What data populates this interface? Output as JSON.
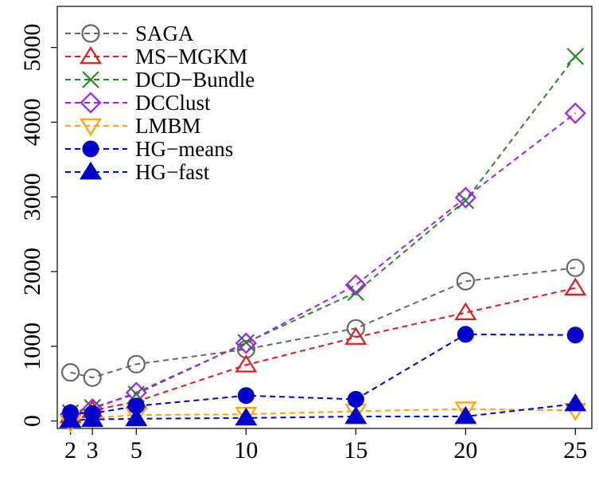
{
  "chart_data": {
    "type": "line",
    "x": [
      2,
      3,
      5,
      10,
      15,
      20,
      25
    ],
    "xticks": [
      "2",
      "3",
      "5",
      "10",
      "15",
      "20",
      "25"
    ],
    "yticks": [
      "0",
      "1000",
      "2000",
      "3000",
      "4000",
      "5000"
    ],
    "xlim": [
      1.4,
      25.75
    ],
    "ylim": [
      -100,
      5550
    ],
    "grid": false,
    "legend_position": "top-left",
    "series": [
      {
        "name": "SAGA",
        "color": "#666666",
        "marker": "circle-open",
        "values": [
          650,
          580,
          760,
          960,
          1240,
          1870,
          2050
        ]
      },
      {
        "name": "MS−MGKM",
        "color": "#e41a1c",
        "marker": "triangle-open",
        "values": [
          70,
          140,
          260,
          750,
          1120,
          1450,
          1780
        ]
      },
      {
        "name": "DCD−Bundle",
        "color": "#228b22",
        "marker": "x",
        "values": [
          110,
          180,
          360,
          1050,
          1720,
          2950,
          4880
        ]
      },
      {
        "name": "DCClust",
        "color": "#a020f0",
        "marker": "diamond-open",
        "values": [
          90,
          160,
          380,
          1040,
          1820,
          2990,
          4120
        ]
      },
      {
        "name": "LMBM",
        "color": "#ffa500",
        "marker": "triangle-down-open",
        "values": [
          -20,
          40,
          80,
          90,
          130,
          160,
          140
        ]
      },
      {
        "name": "HG−means",
        "color": "#0000cd",
        "marker": "circle-filled",
        "values": [
          110,
          100,
          200,
          340,
          290,
          1160,
          1150
        ]
      },
      {
        "name": "HG−fast",
        "color": "#0000cd",
        "marker": "triangle-filled",
        "values": [
          10,
          20,
          30,
          40,
          60,
          60,
          230
        ]
      }
    ]
  }
}
